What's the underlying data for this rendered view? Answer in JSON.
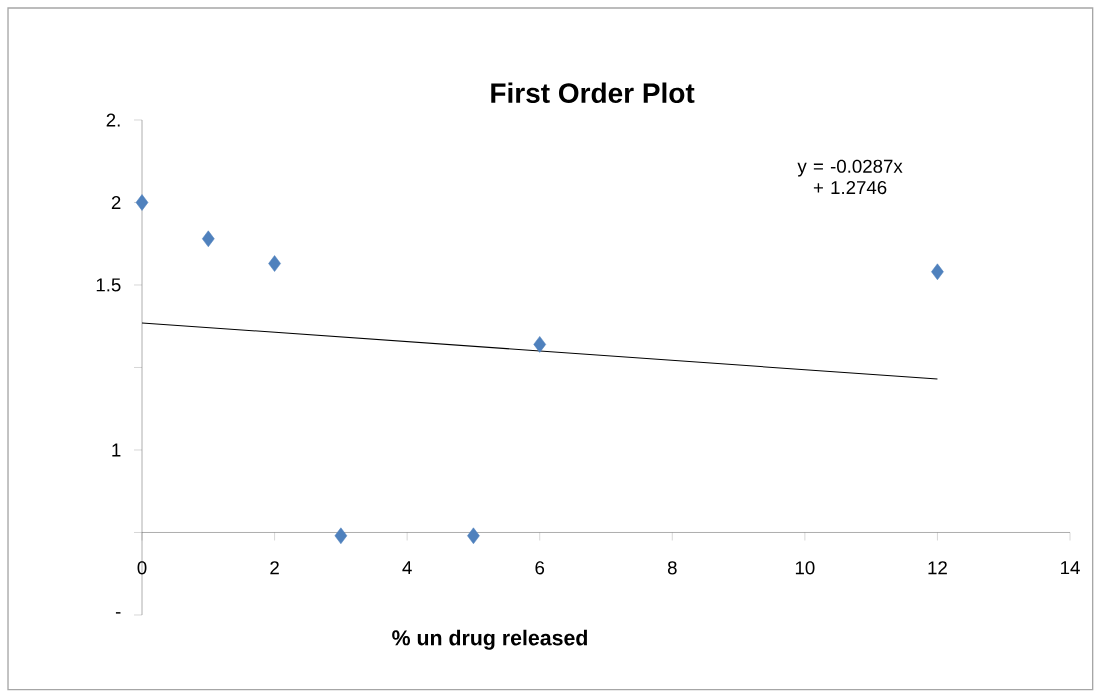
{
  "chart_data": {
    "type": "scatter",
    "title": "First Order Plot",
    "xlabel": "% un drug released",
    "xlim": [
      0,
      14
    ],
    "xticks": [
      0,
      2,
      4,
      6,
      8,
      10,
      12,
      14
    ],
    "ylim": [
      -0.5,
      2.5
    ],
    "yticks": [
      {
        "value": -0.5,
        "label": "-"
      },
      {
        "value": 0,
        "label": null
      },
      {
        "value": 0.5,
        "label": "1"
      },
      {
        "value": 1,
        "label": null
      },
      {
        "value": 1.5,
        "label": "1.5"
      },
      {
        "value": 2,
        "label": "2"
      },
      {
        "value": 2.5,
        "label": "2."
      }
    ],
    "grid": false,
    "annotations": [
      "y = -0.0287x + 1.2746"
    ],
    "series": [
      {
        "color": "#4f81bd",
        "marker": "diamond",
        "x": [
          0,
          1,
          2,
          3,
          5,
          6,
          12
        ],
        "values": [
          2.0,
          1.78,
          1.63,
          -0.02,
          -0.02,
          1.14,
          1.58
        ]
      },
      {
        "type": "line",
        "marker": "none",
        "color": "#000000",
        "x": [
          0,
          12
        ],
        "values": [
          1.27,
          0.93
        ]
      }
    ]
  }
}
